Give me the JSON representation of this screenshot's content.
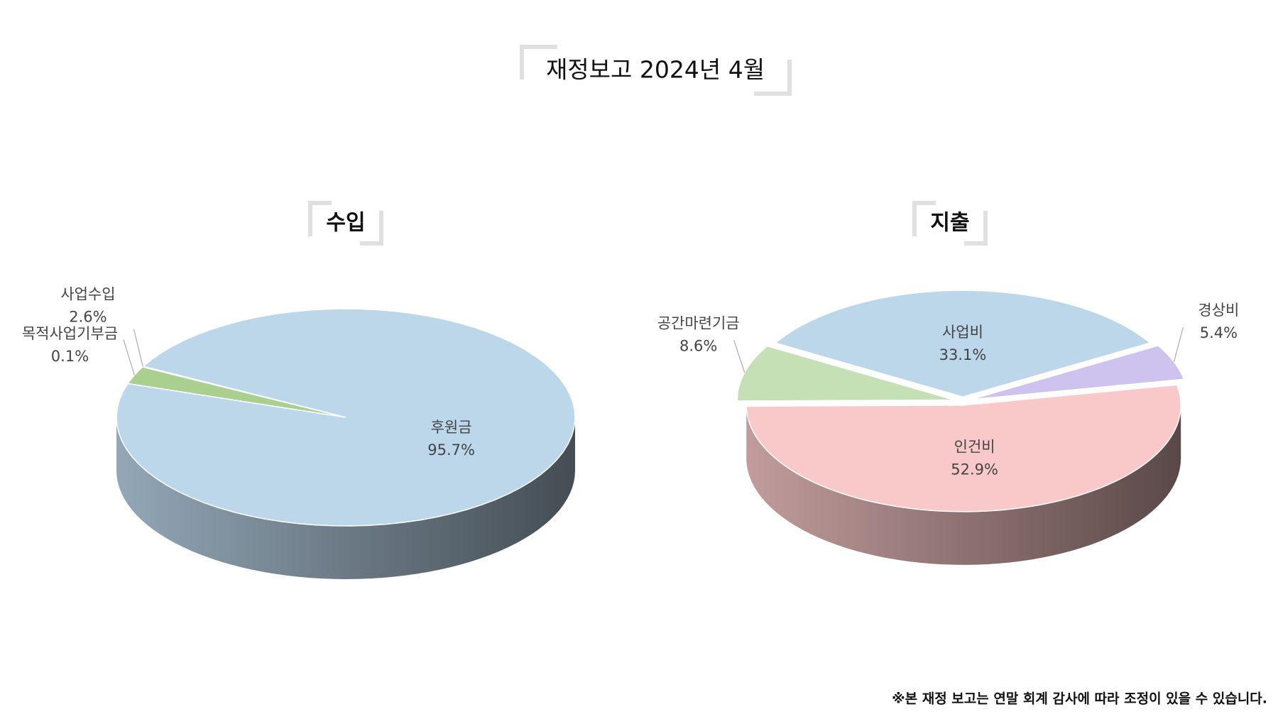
{
  "header": {
    "title": "재정보고 2024년 4월"
  },
  "footnote": "※본 재정 보고는 연말 회계 감사에 따라 조정이 있을 수 있습니다.",
  "chart_data": [
    {
      "type": "pie",
      "title": "수입",
      "categories": [
        "후원금",
        "사업수입",
        "목적사업기부금"
      ],
      "values": [
        95.7,
        2.6,
        0.1
      ],
      "value_labels": [
        "95.7%",
        "2.6%",
        "0.1%"
      ],
      "colors": [
        "#bcd6ea",
        "#a9d08e",
        "#5a5068"
      ]
    },
    {
      "type": "pie",
      "title": "지출",
      "categories": [
        "사업비",
        "경상비",
        "인건비",
        "공간마련기금"
      ],
      "values": [
        33.1,
        5.4,
        52.9,
        8.6
      ],
      "value_labels": [
        "33.1%",
        "5.4%",
        "52.9%",
        "8.6%"
      ],
      "colors": [
        "#bcd6ea",
        "#cdc3ee",
        "#f9c8c8",
        "#c5e0b4"
      ]
    }
  ]
}
